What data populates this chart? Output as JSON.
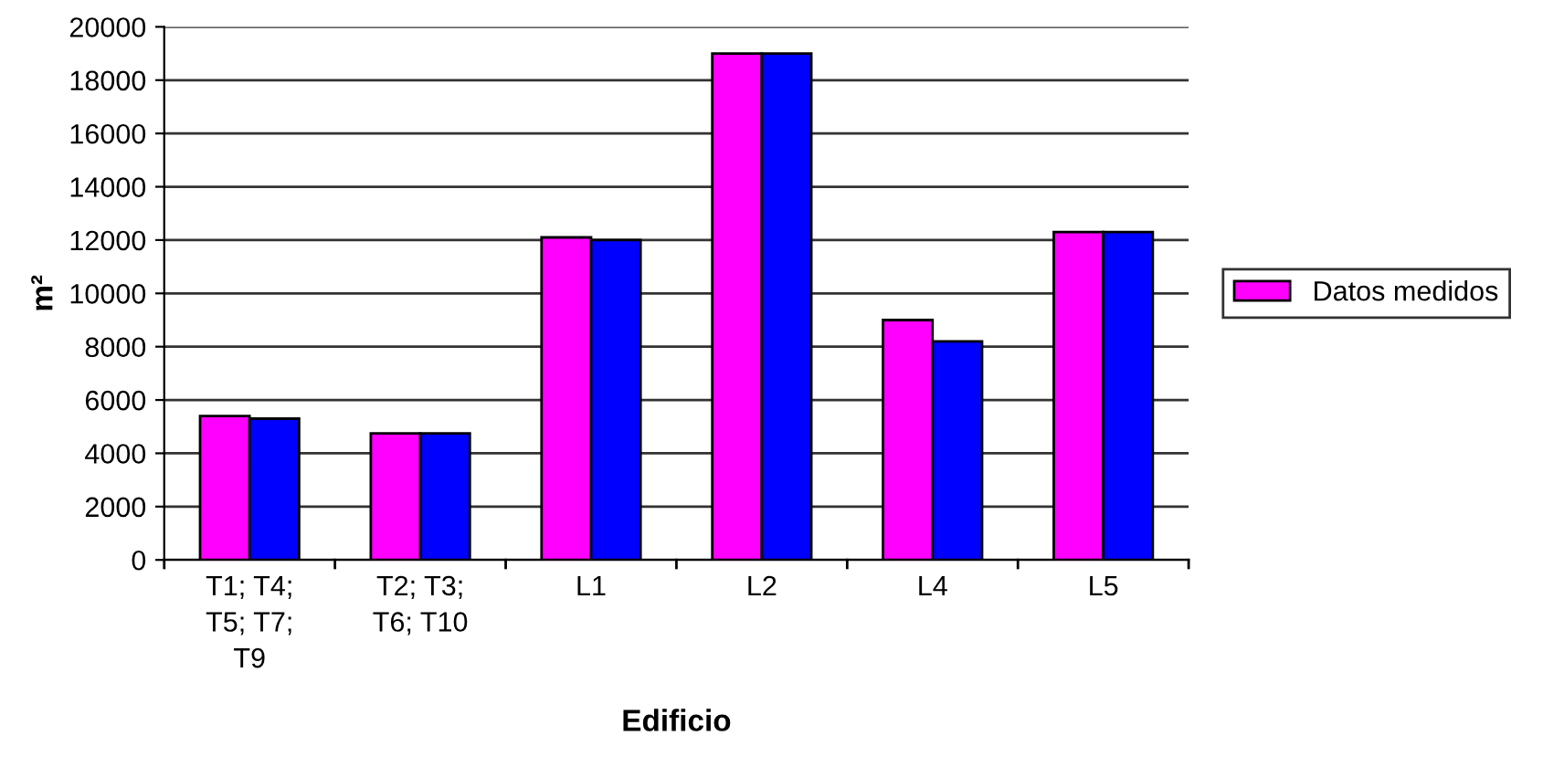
{
  "chart_data": {
    "type": "bar",
    "xlabel": "Edificio",
    "ylabel": "m²",
    "categories": [
      "T1; T4;\nT5; T7;\nT9",
      "T2; T3;\nT6; T10",
      "L1",
      "L2",
      "L4",
      "L5"
    ],
    "series": [
      {
        "name": "Datos medidos",
        "color": "#ff00ff",
        "values": [
          5400,
          4750,
          12100,
          19000,
          9000,
          12300
        ]
      },
      {
        "color": "#0000ff",
        "values": [
          5300,
          4750,
          12000,
          19000,
          8200,
          12300
        ]
      }
    ],
    "ylim": [
      0,
      20000
    ],
    "yticks": [
      0,
      2000,
      4000,
      6000,
      8000,
      10000,
      12000,
      14000,
      16000,
      18000,
      20000
    ],
    "grid": "y",
    "legend": "right"
  }
}
